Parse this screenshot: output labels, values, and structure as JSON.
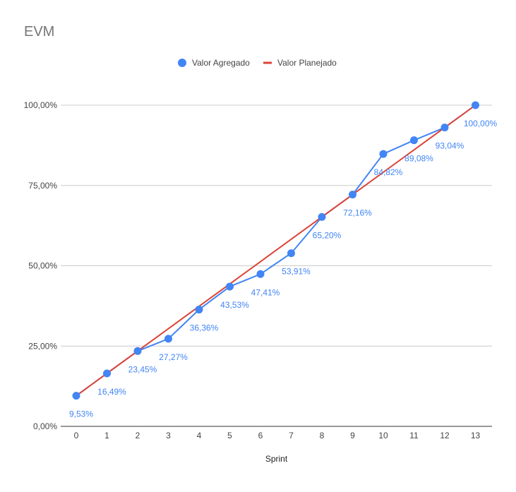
{
  "chart_data": {
    "type": "line",
    "title": "EVM",
    "xlabel": "Sprint",
    "ylabel": "",
    "categories": [
      "0",
      "1",
      "2",
      "3",
      "4",
      "5",
      "6",
      "7",
      "8",
      "9",
      "10",
      "11",
      "12",
      "13"
    ],
    "series": [
      {
        "name": "Valor Agregado",
        "color": "#4285f4",
        "marker": "circle",
        "values": [
          9.53,
          16.49,
          23.45,
          27.27,
          36.36,
          43.53,
          47.41,
          53.91,
          65.2,
          72.16,
          84.82,
          89.08,
          93.04,
          100.0
        ],
        "labels": [
          "9,53%",
          "16,49%",
          "23,45%",
          "27,27%",
          "36,36%",
          "43,53%",
          "47,41%",
          "53,91%",
          "65,20%",
          "72,16%",
          "84,82%",
          "89,08%",
          "93,04%",
          "100,00%"
        ]
      },
      {
        "name": "Valor Planejado",
        "color": "#db4437",
        "marker": "none",
        "values": [
          9.53,
          16.49,
          23.45,
          30.41,
          37.37,
          44.33,
          51.29,
          58.25,
          65.2,
          72.16,
          79.12,
          86.08,
          93.04,
          100.0
        ]
      }
    ],
    "yticks": [
      0,
      25,
      50,
      75,
      100
    ],
    "ytick_labels": [
      "0,00%",
      "25,00%",
      "50,00%",
      "75,00%",
      "100,00%"
    ],
    "ylim": [
      0,
      100
    ],
    "grid": true,
    "legend": "top-center"
  }
}
